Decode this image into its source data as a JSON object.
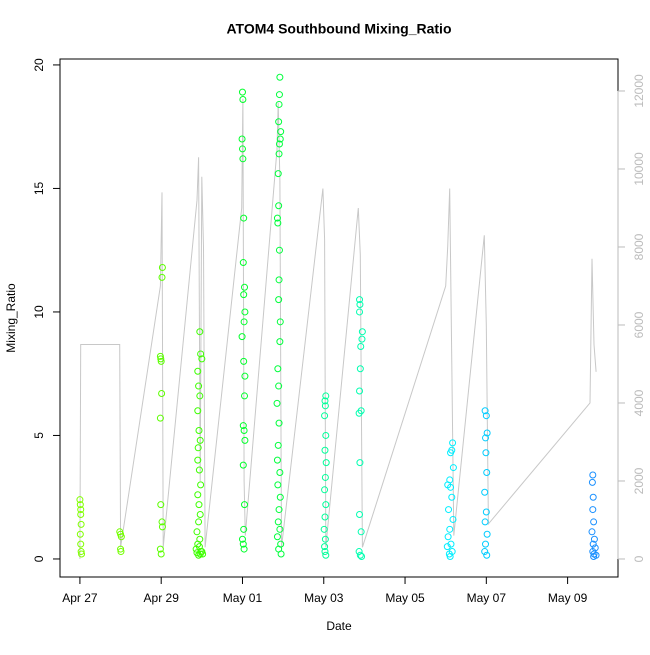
{
  "chart_data": {
    "type": "scatter",
    "title": "ATOM4 Southbound Mixing_Ratio",
    "xlabel": "Date",
    "ylabel": "Mixing_Ratio",
    "xlim": [
      -0.49,
      13.24
    ],
    "ylim": [
      -0.73,
      20.24
    ],
    "y2lim": [
      -462,
      12820
    ],
    "xticks": [
      {
        "value": 0,
        "label": "Apr 27"
      },
      {
        "value": 2,
        "label": "Apr 29"
      },
      {
        "value": 4,
        "label": "May 01"
      },
      {
        "value": 6,
        "label": "May 03"
      },
      {
        "value": 8,
        "label": "May 05"
      },
      {
        "value": 10,
        "label": "May 07"
      },
      {
        "value": 12,
        "label": "May 09"
      }
    ],
    "yticks": [
      0,
      5,
      10,
      15,
      20
    ],
    "y2ticks": [
      0,
      2000,
      4000,
      6000,
      8000,
      10000,
      12000
    ],
    "y2color": "#bbbbbb",
    "series": [
      {
        "type": "line",
        "axis": "y2",
        "color": "#c8c8c8",
        "x": [
          0.0,
          0.02,
          0.98,
          1.0,
          1.98,
          2.02,
          2.05,
          2.88,
          2.92,
          2.96,
          3.0,
          3.04,
          3.08,
          3.98,
          4.01,
          4.04,
          4.07,
          4.85,
          4.88,
          4.92,
          4.96,
          5.98,
          6.02,
          6.05,
          6.85,
          6.9,
          6.95,
          9.0,
          9.05,
          9.1,
          9.15,
          9.2,
          9.95,
          10.0,
          10.05,
          12.55,
          12.6,
          12.65,
          12.7
        ],
        "values": [
          0,
          5500,
          5500,
          300,
          7000,
          9400,
          300,
          9200,
          10300,
          2000,
          9800,
          8000,
          300,
          9000,
          11800,
          2000,
          600,
          10500,
          11700,
          9700,
          300,
          9500,
          8200,
          300,
          9000,
          7800,
          300,
          7000,
          8000,
          9500,
          5000,
          600,
          8300,
          6000,
          900,
          4000,
          7700,
          5500,
          4800
        ]
      },
      {
        "color": "#80ff00",
        "x": [
          0.0,
          0.01,
          0.02,
          0.02,
          0.03,
          0.01,
          0.02,
          0.03,
          0.04
        ],
        "values": [
          2.4,
          2.2,
          2.0,
          1.8,
          1.4,
          1.0,
          0.6,
          0.3,
          0.2
        ]
      },
      {
        "color": "#73ff00",
        "x": [
          0.98,
          1.0,
          1.02,
          1.0,
          1.01
        ],
        "values": [
          1.1,
          1.0,
          0.9,
          0.4,
          0.3
        ]
      },
      {
        "color": "#5cff00",
        "x": [
          2.03,
          2.02,
          1.98,
          1.99,
          2.0,
          2.01,
          1.98,
          1.99,
          2.02,
          2.03,
          1.98,
          2.0
        ],
        "values": [
          11.8,
          11.4,
          8.2,
          8.1,
          8.0,
          6.7,
          5.7,
          2.2,
          1.5,
          1.3,
          0.4,
          0.2
        ]
      },
      {
        "color": "#3dff00",
        "x": [
          2.95,
          2.97,
          3.0,
          2.9,
          2.92,
          2.95,
          2.9,
          2.93,
          2.96,
          2.91,
          2.9,
          2.94,
          2.97,
          2.9,
          2.93,
          2.96,
          2.92,
          2.88,
          2.95,
          2.9,
          2.86,
          2.98,
          3.02,
          2.92,
          3.0,
          2.94,
          2.88,
          2.96
        ],
        "values": [
          9.2,
          8.3,
          8.1,
          7.6,
          7.0,
          6.6,
          6.0,
          5.2,
          4.8,
          4.5,
          4.0,
          3.6,
          3.0,
          2.6,
          2.2,
          1.8,
          1.5,
          1.1,
          0.8,
          0.6,
          0.4,
          0.3,
          0.2,
          0.15,
          0.3,
          0.5,
          0.25,
          0.2
        ]
      },
      {
        "color": "#00ff2a",
        "x": [
          4.0,
          4.01,
          3.99,
          4.0,
          4.01,
          4.03,
          4.02,
          4.05,
          4.03,
          4.06,
          4.04,
          3.99,
          4.03,
          4.06,
          4.05,
          4.02,
          4.04,
          4.06,
          4.02,
          4.05,
          4.03,
          4.0,
          4.02,
          4.04
        ],
        "values": [
          18.9,
          18.6,
          17.0,
          16.6,
          16.2,
          13.8,
          12.0,
          11.0,
          10.7,
          10.0,
          9.6,
          9.0,
          8.0,
          7.4,
          6.6,
          5.4,
          5.2,
          4.8,
          3.8,
          2.2,
          1.2,
          0.8,
          0.6,
          0.4
        ]
      },
      {
        "color": "#00ff3c",
        "x": [
          4.92,
          4.91,
          4.9,
          4.89,
          4.94,
          4.93,
          4.91,
          4.9,
          4.88,
          4.89,
          4.86,
          4.87,
          4.91,
          4.9,
          4.89,
          4.93,
          4.92,
          4.87,
          4.89,
          4.85,
          4.9,
          4.88,
          4.86,
          4.92,
          4.87,
          4.93,
          4.9,
          4.88,
          4.92,
          4.86,
          4.94,
          4.89,
          4.95
        ],
        "values": [
          19.5,
          18.8,
          18.4,
          17.7,
          17.3,
          17.0,
          16.8,
          16.4,
          15.6,
          14.3,
          13.8,
          13.6,
          12.5,
          11.3,
          10.5,
          9.6,
          8.8,
          7.7,
          7.0,
          6.3,
          5.5,
          4.6,
          4.0,
          3.5,
          3.0,
          2.5,
          2.0,
          1.5,
          1.2,
          0.9,
          0.6,
          0.4,
          0.2
        ]
      },
      {
        "color": "#00ff99",
        "x": [
          6.05,
          6.03,
          6.04,
          6.02,
          6.05,
          6.03,
          6.06,
          6.04,
          6.02,
          6.05,
          6.03,
          6.01,
          6.04,
          6.02,
          6.03,
          6.05
        ],
        "values": [
          6.6,
          6.4,
          6.2,
          5.8,
          5.0,
          4.4,
          3.9,
          3.3,
          2.8,
          2.2,
          1.7,
          1.2,
          0.8,
          0.5,
          0.3,
          0.15
        ]
      },
      {
        "color": "#00ffb0",
        "x": [
          6.88,
          6.89,
          6.88,
          6.95,
          6.94,
          6.91,
          6.9,
          6.88,
          6.92,
          6.87,
          6.89,
          6.88,
          6.92,
          6.87,
          6.9,
          6.93
        ],
        "values": [
          10.5,
          10.3,
          10.0,
          9.2,
          8.9,
          8.6,
          7.7,
          6.8,
          6.0,
          5.9,
          3.9,
          1.8,
          1.1,
          0.3,
          0.15,
          0.1
        ]
      },
      {
        "color": "#00eeff",
        "x": [
          9.17,
          9.15,
          9.12,
          9.19,
          9.1,
          9.05,
          9.12,
          9.15,
          9.07,
          9.18,
          9.1,
          9.06,
          9.13,
          9.04,
          9.16,
          9.09,
          9.11
        ],
        "values": [
          4.7,
          4.4,
          4.3,
          3.7,
          3.2,
          3.0,
          2.9,
          2.5,
          2.0,
          1.6,
          1.2,
          0.9,
          0.6,
          0.5,
          0.3,
          0.2,
          0.1
        ]
      },
      {
        "color": "#00ccff",
        "x": [
          9.97,
          10.0,
          10.02,
          9.98,
          9.99,
          10.01,
          9.96,
          10.0,
          9.97,
          10.02,
          9.98,
          9.96,
          10.01
        ],
        "values": [
          6.0,
          5.8,
          5.1,
          4.9,
          4.3,
          3.5,
          2.7,
          1.9,
          1.5,
          1.0,
          0.6,
          0.3,
          0.15
        ]
      },
      {
        "color": "#1a90ff",
        "x": [
          12.62,
          12.61,
          12.63,
          12.62,
          12.64,
          12.6,
          12.66,
          12.63,
          12.68,
          12.62,
          12.65,
          12.7,
          12.64
        ],
        "values": [
          3.4,
          3.1,
          2.5,
          2.0,
          1.5,
          1.1,
          0.8,
          0.6,
          0.45,
          0.3,
          0.2,
          0.15,
          0.1
        ]
      }
    ]
  }
}
